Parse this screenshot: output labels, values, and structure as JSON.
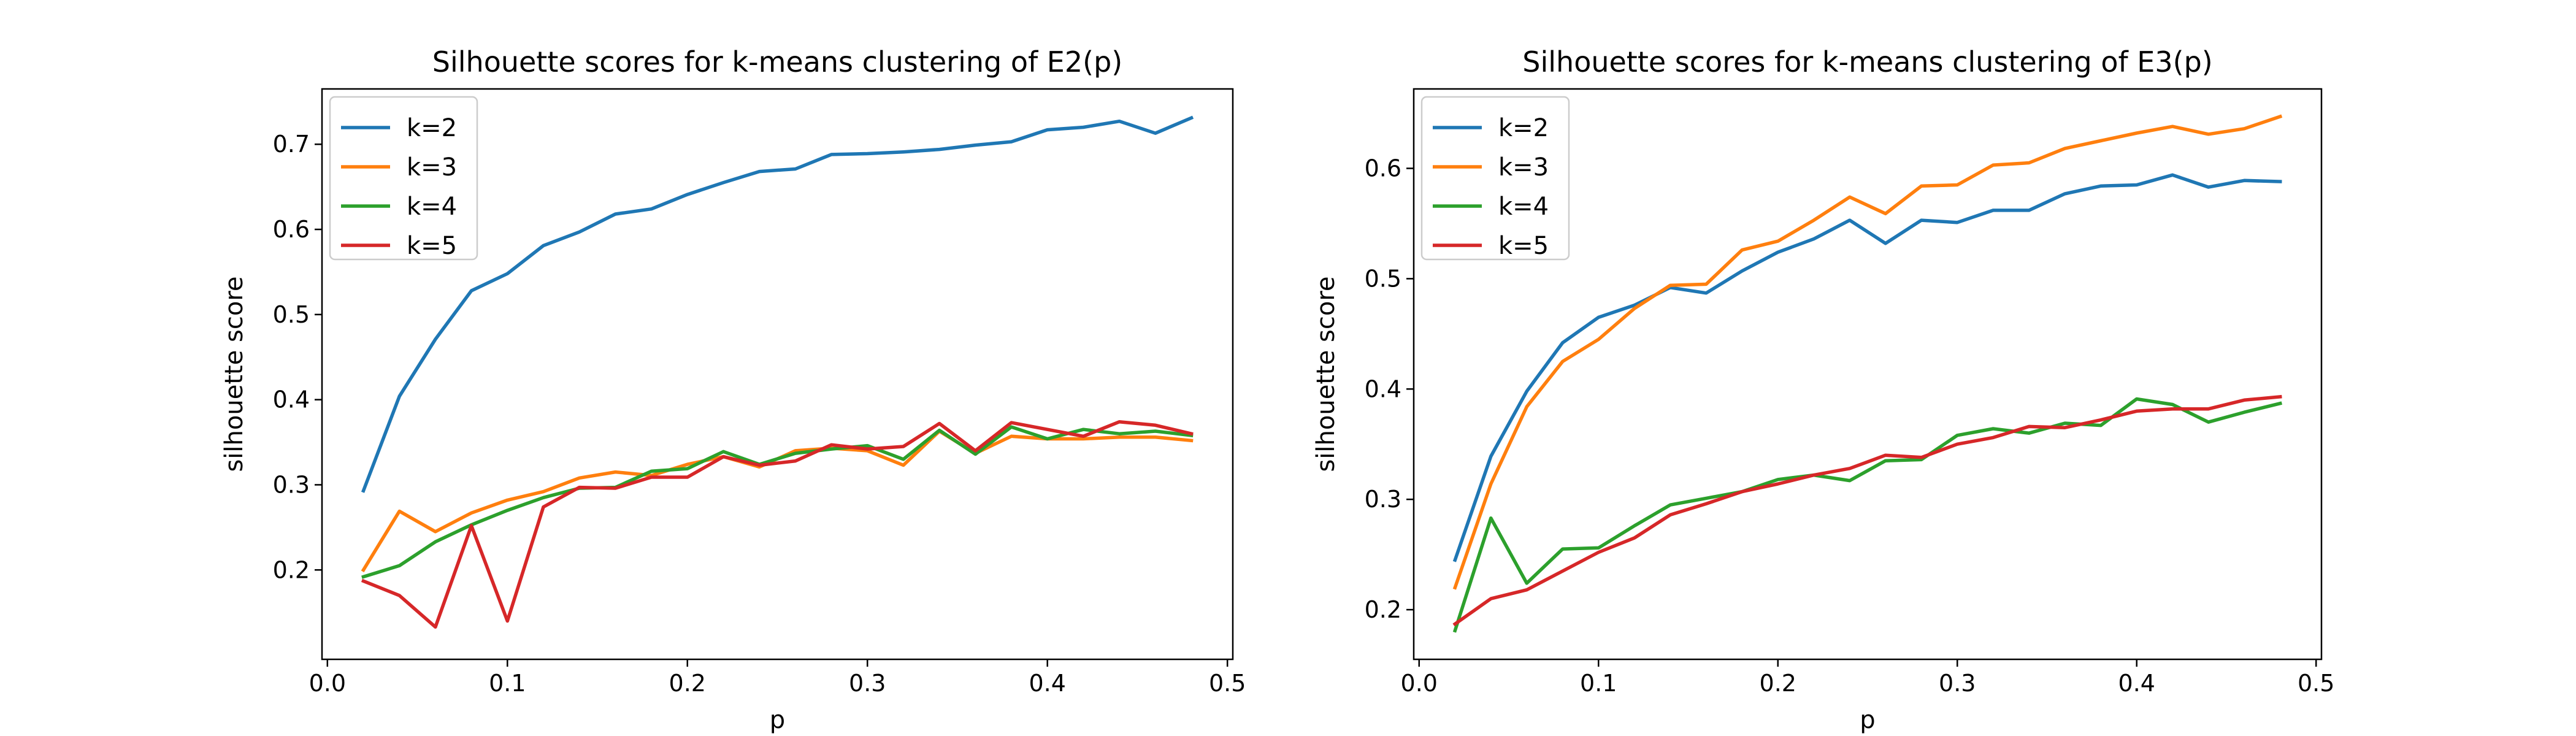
{
  "chart_data": [
    {
      "type": "line",
      "title": "Silhouette scores for k-means clustering of E2(p)",
      "xlabel": "p",
      "ylabel": "silhouette score",
      "xlim": [
        -0.003,
        0.503
      ],
      "ylim": [
        0.095,
        0.765
      ],
      "xticks": [
        0.0,
        0.1,
        0.2,
        0.3,
        0.4,
        0.5
      ],
      "xtick_labels": [
        "0.0",
        "0.1",
        "0.2",
        "0.3",
        "0.4",
        "0.5"
      ],
      "yticks": [
        0.2,
        0.3,
        0.4,
        0.5,
        0.6,
        0.7
      ],
      "ytick_labels": [
        "0.2",
        "0.3",
        "0.4",
        "0.5",
        "0.6",
        "0.7"
      ],
      "grid": false,
      "legend": "top-left",
      "x": [
        0.02,
        0.04,
        0.06,
        0.08,
        0.1,
        0.12,
        0.14,
        0.16,
        0.18,
        0.2,
        0.22,
        0.24,
        0.26,
        0.28,
        0.3,
        0.32,
        0.34,
        0.36,
        0.38,
        0.4,
        0.42,
        0.44,
        0.46,
        0.48
      ],
      "series": [
        {
          "name": "k=2",
          "color": "#1f77b4",
          "values": [
            0.293,
            0.404,
            0.471,
            0.528,
            0.548,
            0.581,
            0.597,
            0.618,
            0.624,
            0.641,
            0.655,
            0.668,
            0.671,
            0.688,
            0.689,
            0.691,
            0.694,
            0.699,
            0.703,
            0.717,
            0.72,
            0.727,
            0.713,
            0.731
          ]
        },
        {
          "name": "k=3",
          "color": "#ff7f0e",
          "values": [
            0.2,
            0.269,
            0.245,
            0.267,
            0.282,
            0.292,
            0.308,
            0.315,
            0.311,
            0.324,
            0.333,
            0.321,
            0.34,
            0.343,
            0.34,
            0.323,
            0.363,
            0.337,
            0.357,
            0.354,
            0.354,
            0.356,
            0.356,
            0.352
          ]
        },
        {
          "name": "k=4",
          "color": "#2ca02c",
          "values": [
            0.192,
            0.205,
            0.233,
            0.253,
            0.27,
            0.285,
            0.296,
            0.297,
            0.316,
            0.319,
            0.339,
            0.324,
            0.337,
            0.342,
            0.346,
            0.33,
            0.364,
            0.336,
            0.368,
            0.354,
            0.365,
            0.36,
            0.363,
            0.358
          ]
        },
        {
          "name": "k=5",
          "color": "#d62728",
          "values": [
            0.187,
            0.17,
            0.133,
            0.252,
            0.14,
            0.274,
            0.297,
            0.296,
            0.309,
            0.309,
            0.333,
            0.323,
            0.328,
            0.347,
            0.342,
            0.345,
            0.372,
            0.34,
            0.373,
            0.365,
            0.357,
            0.374,
            0.37,
            0.36
          ]
        }
      ]
    },
    {
      "type": "line",
      "title": "Silhouette scores for k-means clustering of E3(p)",
      "xlabel": "p",
      "ylabel": "silhouette score",
      "xlim": [
        -0.003,
        0.503
      ],
      "ylim": [
        0.155,
        0.672
      ],
      "xticks": [
        0.0,
        0.1,
        0.2,
        0.3,
        0.4,
        0.5
      ],
      "xtick_labels": [
        "0.0",
        "0.1",
        "0.2",
        "0.3",
        "0.4",
        "0.5"
      ],
      "yticks": [
        0.2,
        0.3,
        0.4,
        0.5,
        0.6
      ],
      "ytick_labels": [
        "0.2",
        "0.3",
        "0.4",
        "0.5",
        "0.6"
      ],
      "grid": false,
      "legend": "top-left",
      "x": [
        0.02,
        0.04,
        0.06,
        0.08,
        0.1,
        0.12,
        0.14,
        0.16,
        0.18,
        0.2,
        0.22,
        0.24,
        0.26,
        0.28,
        0.3,
        0.32,
        0.34,
        0.36,
        0.38,
        0.4,
        0.42,
        0.44,
        0.46,
        0.48
      ],
      "series": [
        {
          "name": "k=2",
          "color": "#1f77b4",
          "values": [
            0.245,
            0.339,
            0.398,
            0.442,
            0.465,
            0.476,
            0.492,
            0.487,
            0.507,
            0.524,
            0.536,
            0.553,
            0.532,
            0.553,
            0.551,
            0.562,
            0.562,
            0.577,
            0.584,
            0.585,
            0.594,
            0.583,
            0.589,
            0.588
          ]
        },
        {
          "name": "k=3",
          "color": "#ff7f0e",
          "values": [
            0.22,
            0.314,
            0.384,
            0.425,
            0.445,
            0.473,
            0.494,
            0.495,
            0.526,
            0.534,
            0.553,
            0.574,
            0.559,
            0.584,
            0.585,
            0.603,
            0.605,
            0.618,
            0.625,
            0.632,
            0.638,
            0.631,
            0.636,
            0.647
          ]
        },
        {
          "name": "k=4",
          "color": "#2ca02c",
          "values": [
            0.181,
            0.283,
            0.224,
            0.255,
            0.256,
            0.276,
            0.295,
            0.301,
            0.307,
            0.318,
            0.322,
            0.317,
            0.335,
            0.336,
            0.358,
            0.364,
            0.36,
            0.369,
            0.367,
            0.391,
            0.386,
            0.37,
            0.379,
            0.387
          ]
        },
        {
          "name": "k=5",
          "color": "#d62728",
          "values": [
            0.187,
            0.21,
            0.218,
            0.235,
            0.252,
            0.265,
            0.286,
            0.296,
            0.307,
            0.314,
            0.322,
            0.328,
            0.34,
            0.338,
            0.35,
            0.356,
            0.366,
            0.365,
            0.372,
            0.38,
            0.382,
            0.382,
            0.39,
            0.393
          ]
        }
      ]
    }
  ]
}
